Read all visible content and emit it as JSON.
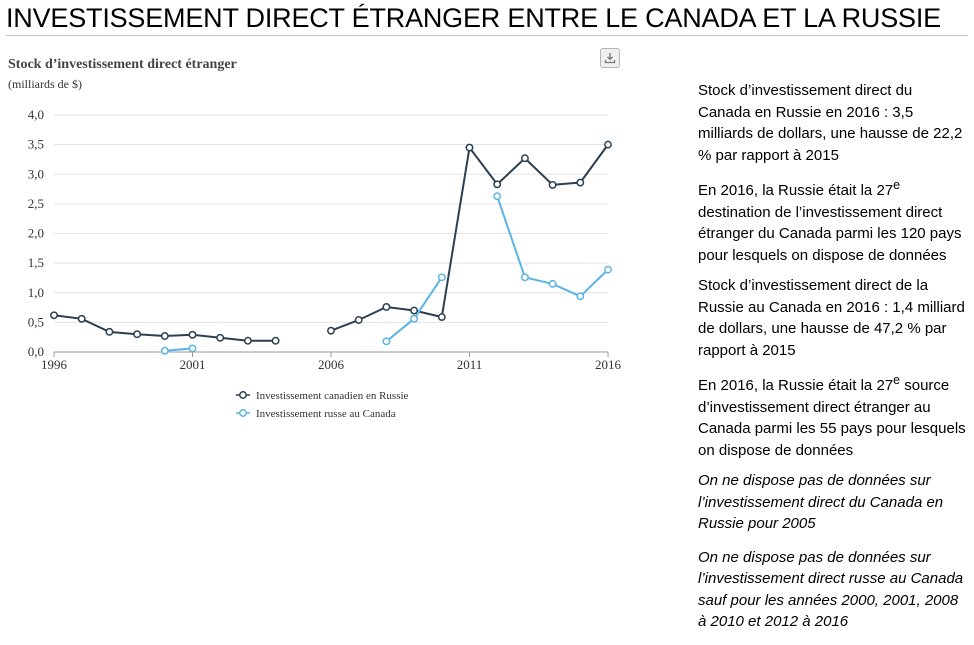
{
  "page_title": "INVESTISSEMENT DIRECT ÉTRANGER ENTRE LE CANADA ET LA RUSSIE",
  "download_icon": "download-icon",
  "colors": {
    "canada": "#2b3e53",
    "russia": "#5ab4e5",
    "grid": "#e3e3e3",
    "axis": "#9a9a9a"
  },
  "chart_data": {
    "type": "line",
    "title": "Stock d’investissement direct étranger",
    "subtitle": "(milliards de $)",
    "xlim": [
      1996,
      2016
    ],
    "ylim": [
      0,
      4
    ],
    "x_ticks": [
      1996,
      2001,
      2006,
      2011,
      2016
    ],
    "y_tick_labels": [
      "0,0",
      "0,5",
      "1,0",
      "1,5",
      "2,0",
      "2,5",
      "3,0",
      "3,5",
      "4,0"
    ],
    "y_tick_values": [
      0,
      0.5,
      1.0,
      1.5,
      2.0,
      2.5,
      3.0,
      3.5,
      4.0
    ],
    "grid": true,
    "legend_position": "bottom",
    "series": [
      {
        "name": "Investissement canadien en Russie",
        "color": "#2b3e53",
        "points": [
          [
            1996,
            0.62
          ],
          [
            1997,
            0.56
          ],
          [
            1998,
            0.34
          ],
          [
            1999,
            0.3
          ],
          [
            2000,
            0.27
          ],
          [
            2001,
            0.29
          ],
          [
            2002,
            0.24
          ],
          [
            2003,
            0.19
          ],
          [
            2004,
            0.19
          ],
          [
            2006,
            0.36
          ],
          [
            2007,
            0.54
          ],
          [
            2008,
            0.76
          ],
          [
            2009,
            0.7
          ],
          [
            2010,
            0.59
          ],
          [
            2011,
            3.45
          ],
          [
            2012,
            2.83
          ],
          [
            2013,
            3.27
          ],
          [
            2014,
            2.82
          ],
          [
            2015,
            2.86
          ],
          [
            2016,
            3.5
          ]
        ],
        "segments": [
          [
            1996,
            2004
          ],
          [
            2006,
            2016
          ]
        ]
      },
      {
        "name": "Investissement russe au Canada",
        "color": "#5ab4e5",
        "points": [
          [
            2000,
            0.02
          ],
          [
            2001,
            0.06
          ],
          [
            2008,
            0.18
          ],
          [
            2009,
            0.56
          ],
          [
            2010,
            1.26
          ],
          [
            2012,
            2.63
          ],
          [
            2013,
            1.26
          ],
          [
            2014,
            1.15
          ],
          [
            2015,
            0.94
          ],
          [
            2016,
            1.39
          ]
        ],
        "segments": [
          [
            2000,
            2001
          ],
          [
            2008,
            2010
          ],
          [
            2012,
            2016
          ]
        ]
      }
    ]
  },
  "side_panel": {
    "block1": "Stock d’investissement direct du Canada en Russie en 2016 : 3,5 milliards de dollars, une hausse de 22,2 % par rapport à 2015",
    "block2_before": "En 2016, la Russie était la 27",
    "block2_sup": "e",
    "block2_after": " destination de l’investissement direct étranger du Canada parmi les 120 pays pour lesquels on dispose de données",
    "block3": "Stock d’investissement direct de la Russie au Canada en 2016 : 1,4 milliard de dollars, une hausse de 47,2 % par rapport à 2015",
    "block4_before": "En 2016, la Russie était la 27",
    "block4_sup": "e",
    "block4_after": " source d’investissement direct étranger au Canada parmi les 55 pays pour lesquels on dispose de données",
    "note1": "On ne dispose pas de données sur l’investissement direct du Canada en Russie pour 2005",
    "note2": "On ne dispose pas de données sur l’investissement direct russe au Canada sauf pour les années 2000, 2001, 2008 à 2010 et 2012 à 2016"
  }
}
